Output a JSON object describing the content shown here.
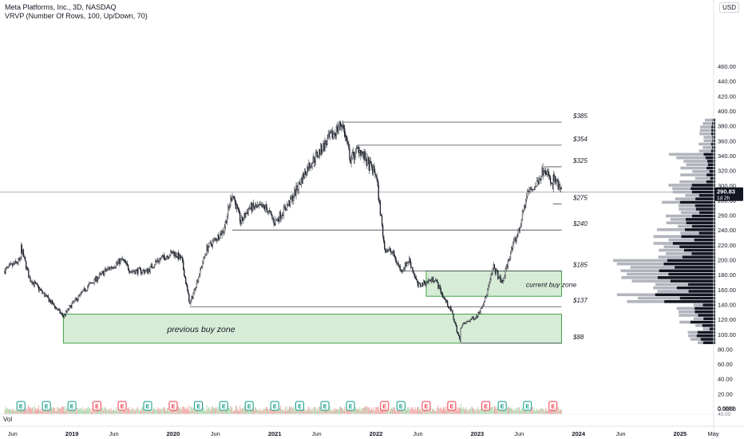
{
  "legend": {
    "symbol_line": "Meta Platforms, Inc., 3D, NASDAQ",
    "indicator_line": "VRVP (Number Of Rows, 100, Up/Down, 70)"
  },
  "currency": "USD",
  "volume_label": "Vol",
  "colors": {
    "candle": "#131722",
    "level_line": "#434651",
    "zone_fill": "#c8e6c9",
    "zone_stroke": "#43a047",
    "profile_dark": "#131722",
    "profile_light": "#b2b5be",
    "earnings_green": "#089981",
    "earnings_red": "#f23645"
  },
  "chart_data": {
    "type": "candlestick",
    "y_axis": {
      "min": 0,
      "max": 460,
      "ticks": [
        "0.0000",
        "20.00",
        "40.00",
        "60.00",
        "80.00",
        "100.00",
        "120.00",
        "140.00",
        "160.00",
        "180.00",
        "200.00",
        "220.00",
        "240.00",
        "260.00",
        "280.00",
        "300.00",
        "320.00",
        "340.00",
        "360.00",
        "380.00",
        "400.00",
        "420.00",
        "440.00",
        "460.00"
      ]
    },
    "x_axis": {
      "ticks": [
        {
          "label": "Jun",
          "date": "2018-06"
        },
        {
          "label": "2019",
          "date": "2019-01"
        },
        {
          "label": "Jun",
          "date": "2019-06"
        },
        {
          "label": "2020",
          "date": "2020-01"
        },
        {
          "label": "Jun",
          "date": "2020-06"
        },
        {
          "label": "2021",
          "date": "2021-01"
        },
        {
          "label": "Jun",
          "date": "2021-06"
        },
        {
          "label": "2022",
          "date": "2022-01"
        },
        {
          "label": "Jun",
          "date": "2022-06"
        },
        {
          "label": "2023",
          "date": "2023-01"
        },
        {
          "label": "Jun",
          "date": "2023-06"
        },
        {
          "label": "2024",
          "date": "2024-01"
        },
        {
          "label": "Jun",
          "date": "2024-06"
        },
        {
          "label": "2025",
          "date": "2025-01"
        },
        {
          "label": "May",
          "date": "2025-05"
        }
      ]
    },
    "price_path": [
      [
        "2018-05",
        185
      ],
      [
        "2018-07",
        200
      ],
      [
        "2018-07",
        217
      ],
      [
        "2018-08",
        175
      ],
      [
        "2018-10",
        150
      ],
      [
        "2018-12",
        124
      ],
      [
        "2019-01",
        140
      ],
      [
        "2019-03",
        165
      ],
      [
        "2019-04",
        175
      ],
      [
        "2019-05",
        185
      ],
      [
        "2019-07",
        200
      ],
      [
        "2019-08",
        185
      ],
      [
        "2019-10",
        185
      ],
      [
        "2019-11",
        198
      ],
      [
        "2020-01",
        210
      ],
      [
        "2020-02",
        200
      ],
      [
        "2020-03",
        140
      ],
      [
        "2020-04",
        178
      ],
      [
        "2020-05",
        215
      ],
      [
        "2020-07",
        240
      ],
      [
        "2020-08",
        290
      ],
      [
        "2020-09",
        250
      ],
      [
        "2020-10",
        270
      ],
      [
        "2020-12",
        270
      ],
      [
        "2021-01",
        250
      ],
      [
        "2021-03",
        280
      ],
      [
        "2021-05",
        325
      ],
      [
        "2021-07",
        355
      ],
      [
        "2021-09",
        384
      ],
      [
        "2021-10",
        335
      ],
      [
        "2021-11",
        350
      ],
      [
        "2021-12",
        330
      ],
      [
        "2022-01",
        315
      ],
      [
        "2022-02",
        215
      ],
      [
        "2022-03",
        210
      ],
      [
        "2022-04",
        185
      ],
      [
        "2022-05",
        200
      ],
      [
        "2022-06",
        165
      ],
      [
        "2022-07",
        170
      ],
      [
        "2022-08",
        175
      ],
      [
        "2022-09",
        150
      ],
      [
        "2022-10",
        130
      ],
      [
        "2022-11",
        89
      ],
      [
        "2022-11",
        110
      ],
      [
        "2022-12",
        118
      ],
      [
        "2023-01",
        125
      ],
      [
        "2023-02",
        150
      ],
      [
        "2023-03",
        190
      ],
      [
        "2023-04",
        168
      ],
      [
        "2023-05",
        210
      ],
      [
        "2023-06",
        240
      ],
      [
        "2023-07",
        290
      ],
      [
        "2023-08",
        300
      ],
      [
        "2023-09",
        326
      ],
      [
        "2023-10",
        295
      ],
      [
        "2023-10",
        310
      ],
      [
        "2023-11",
        291
      ]
    ],
    "last_price": {
      "value": 290.83,
      "label": "290.83",
      "sublabel": "1d 2h"
    },
    "levels": [
      {
        "label": "$385",
        "value": 385,
        "from": "2021-09"
      },
      {
        "label": "$354",
        "value": 354,
        "from": "2021-11"
      },
      {
        "label": "$325",
        "value": 325,
        "from": "2023-09"
      },
      {
        "label": "$275",
        "value": 275,
        "from": "2023-10"
      },
      {
        "label": "$240",
        "value": 240,
        "from": "2020-08"
      },
      {
        "label": "$185",
        "value": 185,
        "from": "2022-04"
      },
      {
        "label": "$137",
        "value": 137,
        "from": "2020-03"
      },
      {
        "label": "$88",
        "value": 88,
        "from": "2022-11"
      }
    ],
    "zones": [
      {
        "label": "previous buy zone",
        "top": 127,
        "bottom": 88,
        "from": "2018-12",
        "to": "2023-11"
      },
      {
        "label": "current buy zone",
        "top": 185,
        "bottom": 151,
        "from": "2022-07",
        "to": "2023-11"
      }
    ],
    "earnings": [
      {
        "date": "2018-07",
        "letter": "E",
        "type": "positive"
      },
      {
        "date": "2018-10",
        "letter": "E",
        "type": "positive"
      },
      {
        "date": "2019-01",
        "letter": "E",
        "type": "positive"
      },
      {
        "date": "2019-04",
        "letter": "E",
        "type": "negative"
      },
      {
        "date": "2019-07",
        "letter": "E",
        "type": "negative"
      },
      {
        "date": "2019-10",
        "letter": "E",
        "type": "positive"
      },
      {
        "date": "2020-01",
        "letter": "E",
        "type": "negative"
      },
      {
        "date": "2020-04",
        "letter": "E",
        "type": "positive"
      },
      {
        "date": "2020-07",
        "letter": "E",
        "type": "positive"
      },
      {
        "date": "2020-10",
        "letter": "E",
        "type": "positive"
      },
      {
        "date": "2021-01",
        "letter": "E",
        "type": "positive"
      },
      {
        "date": "2021-04",
        "letter": "E",
        "type": "positive"
      },
      {
        "date": "2021-07",
        "letter": "E",
        "type": "positive"
      },
      {
        "date": "2021-10",
        "letter": "E",
        "type": "positive"
      },
      {
        "date": "2022-02",
        "letter": "E",
        "type": "negative"
      },
      {
        "date": "2022-04",
        "letter": "E",
        "type": "positive"
      },
      {
        "date": "2022-07",
        "letter": "E",
        "type": "negative"
      },
      {
        "date": "2022-10",
        "letter": "E",
        "type": "negative"
      },
      {
        "date": "2023-02",
        "letter": "E",
        "type": "negative"
      },
      {
        "date": "2023-04",
        "letter": "E",
        "type": "positive"
      },
      {
        "date": "2023-07",
        "letter": "E",
        "type": "positive"
      },
      {
        "date": "2023-10",
        "letter": "E",
        "type": "negative"
      }
    ],
    "volume_axis": {
      "labels": [
        "0.0000",
        "40.00"
      ]
    },
    "legend_position": "top-left"
  }
}
